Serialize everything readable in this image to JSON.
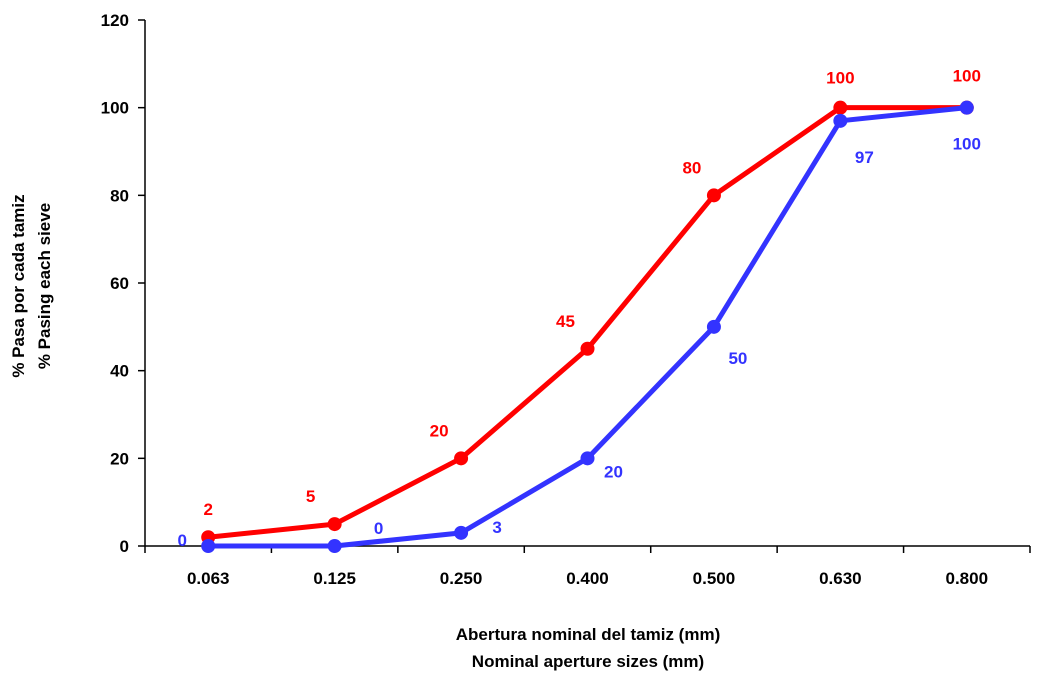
{
  "chart_data": {
    "type": "line",
    "categories": [
      "0.063",
      "0.125",
      "0.250",
      "0.400",
      "0.500",
      "0.630",
      "0.800"
    ],
    "series": [
      {
        "color": "#ff0000",
        "values": [
          2,
          5,
          20,
          45,
          80,
          100,
          100
        ]
      },
      {
        "color": "#3333ff",
        "values": [
          0,
          0,
          3,
          20,
          50,
          97,
          100
        ]
      }
    ],
    "ylim": [
      0,
      120
    ],
    "yticks": [
      0,
      20,
      40,
      60,
      80,
      100,
      120
    ],
    "ylabel": [
      "% Pasa por cada tamiz",
      "% Pasing each sieve"
    ],
    "xlabel": [
      "Abertura nominal del tamiz (mm)",
      "Nominal aperture sizes (mm)"
    ],
    "grid": false,
    "legend": "none"
  }
}
